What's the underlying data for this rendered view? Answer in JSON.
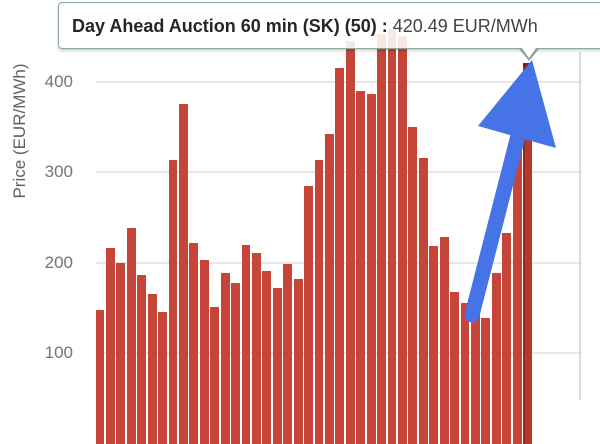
{
  "tooltip": {
    "label": "Day Ahead Auction 60 min (SK) (50) :",
    "value": "420.49 EUR/MWh"
  },
  "y_axis": {
    "title": "Price (EUR/MWh)"
  },
  "colors": {
    "bar": "#c54538",
    "bar_highlight": "#b03a2c",
    "gridline": "#e7e7e7",
    "plot_right_edge": "#dcdcdc",
    "tooltip_border": "#8aa799",
    "arrow_blue": "#4673e5",
    "tick_text": "#757575"
  },
  "chart_data": {
    "type": "bar",
    "title": "",
    "xlabel": "",
    "ylabel": "Price (EUR/MWh)",
    "ylim": [
      0,
      460
    ],
    "grid": true,
    "legend_position": "none",
    "x_tick_labels_visible": false,
    "axis_ticks": [
      100,
      200,
      300,
      400
    ],
    "series_name": "Day Ahead Auction 60 min (SK)",
    "values": [
      147,
      216,
      200,
      238,
      186,
      165,
      145,
      313,
      375,
      222,
      203,
      151,
      188,
      177,
      219,
      210,
      191,
      172,
      198,
      182,
      285,
      313,
      342,
      415,
      445,
      390,
      386,
      452,
      458,
      450,
      350,
      316,
      218,
      228,
      167,
      155,
      146,
      139,
      188,
      233,
      349,
      420.49
    ],
    "highlighted_point": {
      "index_label": 50,
      "value": 420.49,
      "unit": "EUR/MWh"
    },
    "note": "Left portion of hourly series cropped off-screen; tooltip index (50) refers to the last visible highlighted bar. Bars behind tooltip (≈445-458) are partially occluded; baseline (0) below visible viewport."
  }
}
